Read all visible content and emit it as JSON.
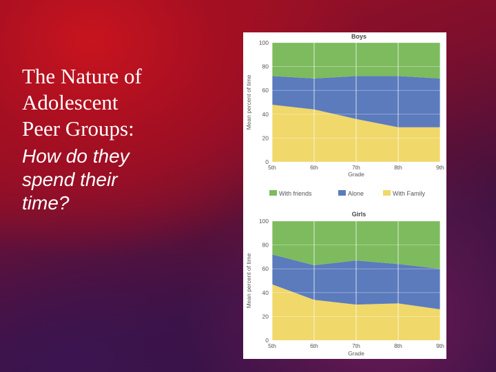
{
  "slide": {
    "title": "The Nature of\nAdolescent\nPeer Groups:",
    "subtitle": "How do they\nspend their\ntime?"
  },
  "chart_data": [
    {
      "type": "area",
      "title": "Boys",
      "xlabel": "Grade",
      "ylabel": "Mean percent of time",
      "categories": [
        "5th",
        "6th",
        "7th",
        "8th",
        "9th"
      ],
      "ylim": [
        0,
        100
      ],
      "yticks": [
        0,
        20,
        40,
        60,
        80,
        100
      ],
      "stacked": true,
      "series": [
        {
          "name": "With Family",
          "color": "#f0d86a",
          "values": [
            48,
            44,
            36,
            29,
            29
          ]
        },
        {
          "name": "Alone",
          "color": "#5b7bbd",
          "values": [
            24,
            26,
            36,
            43,
            41
          ]
        },
        {
          "name": "With friends",
          "color": "#7dbb5e",
          "values": [
            28,
            30,
            28,
            28,
            30
          ]
        }
      ]
    },
    {
      "type": "area",
      "title": "Girls",
      "xlabel": "Grade",
      "ylabel": "Mean percent of time",
      "categories": [
        "5th",
        "6th",
        "7th",
        "8th",
        "9th"
      ],
      "ylim": [
        0,
        100
      ],
      "yticks": [
        0,
        20,
        40,
        60,
        80,
        100
      ],
      "stacked": true,
      "series": [
        {
          "name": "With Family",
          "color": "#f0d86a",
          "values": [
            47,
            34,
            30,
            31,
            26
          ]
        },
        {
          "name": "Alone",
          "color": "#5b7bbd",
          "values": [
            25,
            29,
            37,
            33,
            34
          ]
        },
        {
          "name": "With friends",
          "color": "#7dbb5e",
          "values": [
            28,
            37,
            33,
            36,
            40
          ]
        }
      ]
    }
  ],
  "legend": [
    {
      "label": "With friends",
      "color": "#7dbb5e"
    },
    {
      "label": "Alone",
      "color": "#5b7bbd"
    },
    {
      "label": "With Family",
      "color": "#f0d86a"
    }
  ]
}
